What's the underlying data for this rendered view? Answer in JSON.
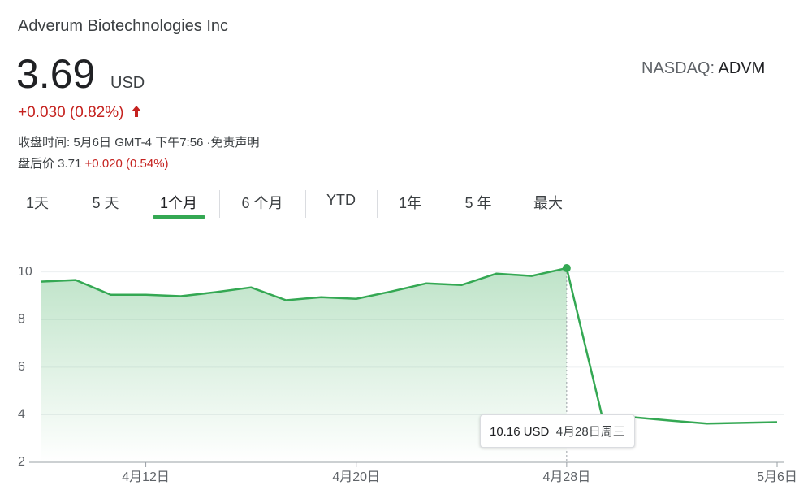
{
  "header": {
    "company": "Adverum Biotechnologies Inc",
    "price": "3.69",
    "currency": "USD",
    "change": "+0.030 (0.82%)",
    "close_time": "收盘时间: 5月6日 GMT-4 下午7:56 ·免责声明",
    "after_hours_label": "盘后价 3.71",
    "after_hours_change": "+0.020 (0.54%)",
    "exchange": "NASDAQ:",
    "ticker": "ADVM"
  },
  "tabs": [
    "1天",
    "5 天",
    "1个月",
    "6 个月",
    "YTD",
    "1年",
    "5 年",
    "最大"
  ],
  "tooltip": {
    "value": "10.16 USD",
    "date": "4月28日周三"
  },
  "chart_data": {
    "type": "line",
    "color": "#34a853",
    "categories": [
      null,
      null,
      null,
      "4月12日",
      null,
      null,
      null,
      null,
      null,
      "4月20日",
      null,
      null,
      null,
      null,
      null,
      "4月28日",
      null,
      null,
      null,
      null,
      null,
      "5月6日"
    ],
    "values": [
      9.59,
      9.66,
      9.04,
      9.04,
      8.98,
      9.15,
      9.35,
      8.81,
      8.94,
      8.87,
      9.18,
      9.52,
      9.45,
      9.93,
      9.83,
      10.16,
      4.0,
      3.88,
      3.75,
      3.63,
      3.66,
      3.69
    ],
    "ylim": [
      2,
      10.5
    ],
    "yticks": [
      2,
      4,
      6,
      8,
      10
    ],
    "grid": true
  }
}
